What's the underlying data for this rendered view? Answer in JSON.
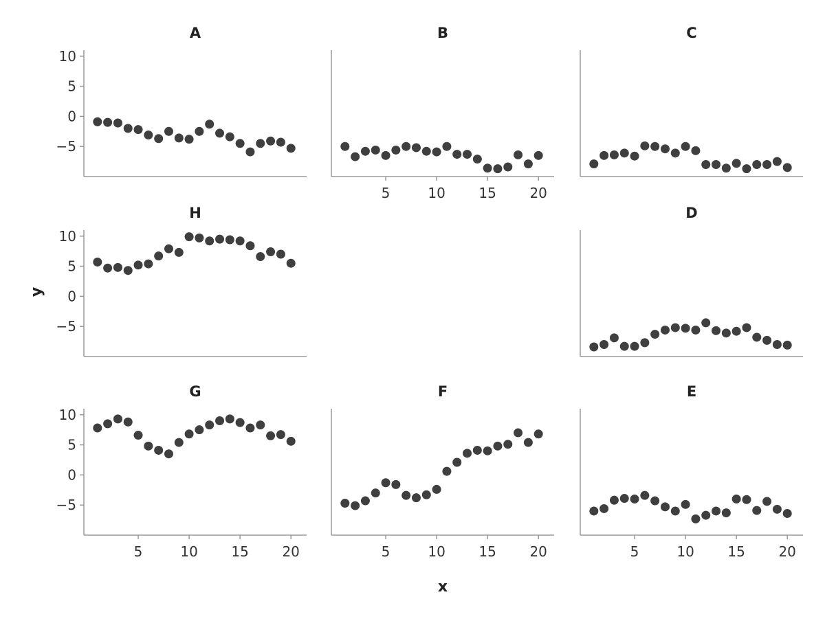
{
  "chart_data": {
    "type": "scatter",
    "xlabel": "x",
    "ylabel": "y",
    "xlim": [
      0,
      21
    ],
    "ylim": [
      -10,
      11
    ],
    "x_ticks": [
      5,
      10,
      15,
      20
    ],
    "y_ticks": [
      -5,
      0,
      5,
      10
    ],
    "point_color": "#3f3f3f",
    "axis_color": "#999999",
    "grid": false,
    "x": [
      1,
      2,
      3,
      4,
      5,
      6,
      7,
      8,
      9,
      10,
      11,
      12,
      13,
      14,
      15,
      16,
      17,
      18,
      19,
      20
    ],
    "panels": [
      {
        "name": "A",
        "row": 0,
        "col": 0,
        "y": [
          -0.9,
          -1.0,
          -1.1,
          -2.0,
          -2.2,
          -3.1,
          -3.7,
          -2.5,
          -3.6,
          -3.8,
          -2.5,
          -1.3,
          -2.8,
          -3.4,
          -4.5,
          -5.9,
          -4.5,
          -4.1,
          -4.3,
          -5.3
        ]
      },
      {
        "name": "B",
        "row": 0,
        "col": 1,
        "y": [
          -5.0,
          -6.7,
          -5.8,
          -5.6,
          -6.5,
          -5.6,
          -5.0,
          -5.2,
          -5.8,
          -5.9,
          -5.0,
          -6.3,
          -6.3,
          -7.1,
          -8.6,
          -8.7,
          -8.4,
          -6.4,
          -7.9,
          -6.5
        ]
      },
      {
        "name": "C",
        "row": 0,
        "col": 2,
        "y": [
          -7.9,
          -6.5,
          -6.4,
          -6.1,
          -6.6,
          -4.9,
          -5.0,
          -5.4,
          -6.1,
          -5.0,
          -5.7,
          -8.0,
          -8.0,
          -8.6,
          -7.8,
          -8.7,
          -8.0,
          -8.0,
          -7.5,
          -8.5
        ]
      },
      {
        "name": "H",
        "row": 1,
        "col": 0,
        "y": [
          5.7,
          4.7,
          4.8,
          4.3,
          5.2,
          5.4,
          6.7,
          7.9,
          7.3,
          9.9,
          9.7,
          9.2,
          9.5,
          9.4,
          9.2,
          8.4,
          6.6,
          7.4,
          7.0,
          5.5
        ]
      },
      {
        "name": "D",
        "row": 1,
        "col": 2,
        "y": [
          -8.4,
          -8.0,
          -6.9,
          -8.3,
          -8.3,
          -7.7,
          -6.3,
          -5.6,
          -5.2,
          -5.3,
          -5.6,
          -4.4,
          -5.7,
          -6.1,
          -5.8,
          -5.2,
          -6.8,
          -7.3,
          -8.0,
          -8.1
        ]
      },
      {
        "name": "G",
        "row": 2,
        "col": 0,
        "y": [
          7.8,
          8.5,
          9.3,
          8.8,
          6.6,
          4.8,
          4.1,
          3.5,
          5.4,
          6.8,
          7.5,
          8.3,
          9.0,
          9.3,
          8.7,
          7.8,
          8.3,
          6.5,
          6.7,
          5.6
        ]
      },
      {
        "name": "F",
        "row": 2,
        "col": 1,
        "y": [
          -4.7,
          -5.1,
          -4.3,
          -3.0,
          -1.3,
          -1.6,
          -3.4,
          -3.8,
          -3.3,
          -2.4,
          0.6,
          2.1,
          3.6,
          4.1,
          4.0,
          4.8,
          5.1,
          7.0,
          5.4,
          6.8
        ]
      },
      {
        "name": "E",
        "row": 2,
        "col": 2,
        "y": [
          -6.0,
          -5.6,
          -4.2,
          -3.9,
          -4.0,
          -3.4,
          -4.3,
          -5.3,
          -6.0,
          -4.9,
          -7.3,
          -6.7,
          -6.0,
          -6.3,
          -4.0,
          -4.1,
          -5.9,
          -4.4,
          -5.7,
          -6.4
        ]
      }
    ]
  }
}
